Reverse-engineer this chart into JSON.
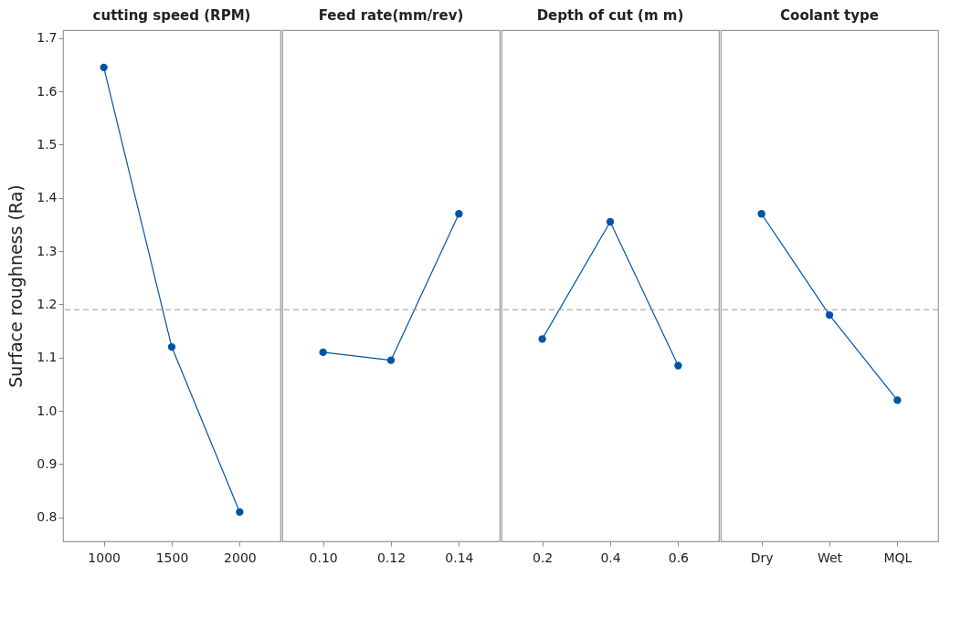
{
  "chart_data": [
    {
      "type": "line",
      "title": "cutting speed (RPM)",
      "ylabel": "Surface roughness (Ra)",
      "categories": [
        "1000",
        "1500",
        "2000"
      ],
      "values": [
        1.645,
        1.12,
        0.81
      ],
      "color": "#0054a6",
      "ylim": [
        0.755,
        1.715
      ],
      "yticks": [
        0.8,
        0.9,
        {
          "value": 1.0,
          "label": "1.0"
        },
        1.1,
        1.2,
        1.3,
        1.4,
        1.5,
        1.6,
        1.7
      ],
      "ref_lines": [
        {
          "axis": "y",
          "value": 1.19,
          "color": "#999999",
          "line_style": "dashed"
        }
      ],
      "marker": "circle",
      "grid": false
    },
    {
      "type": "line",
      "title": "Feed rate(mm/rev)",
      "categories": [
        "0.10",
        "0.12",
        "0.14"
      ],
      "values": [
        1.11,
        1.095,
        1.37
      ],
      "color": "#0054a6",
      "ylim": [
        0.755,
        1.715
      ],
      "ref_lines": [
        {
          "axis": "y",
          "value": 1.19,
          "color": "#999999",
          "line_style": "dashed"
        }
      ],
      "marker": "circle",
      "grid": false,
      "tick_labels": "x"
    },
    {
      "type": "line",
      "title": "Depth of cut (m m)",
      "categories": [
        "0.2",
        "0.4",
        "0.6"
      ],
      "values": [
        1.135,
        1.355,
        1.085
      ],
      "color": "#0054a6",
      "ylim": [
        0.755,
        1.715
      ],
      "ref_lines": [
        {
          "axis": "y",
          "value": 1.19,
          "color": "#999999",
          "line_style": "dashed"
        }
      ],
      "marker": "circle",
      "grid": false,
      "tick_labels": "x"
    },
    {
      "type": "line",
      "title": "Coolant type",
      "categories": [
        "Dry",
        "Wet",
        "MQL"
      ],
      "values": [
        1.37,
        1.18,
        1.02
      ],
      "color": "#0054a6",
      "ylim": [
        0.755,
        1.715
      ],
      "ref_lines": [
        {
          "axis": "y",
          "value": 1.19,
          "color": "#999999",
          "line_style": "dashed"
        }
      ],
      "marker": "circle",
      "grid": false,
      "tick_labels": "x"
    }
  ]
}
